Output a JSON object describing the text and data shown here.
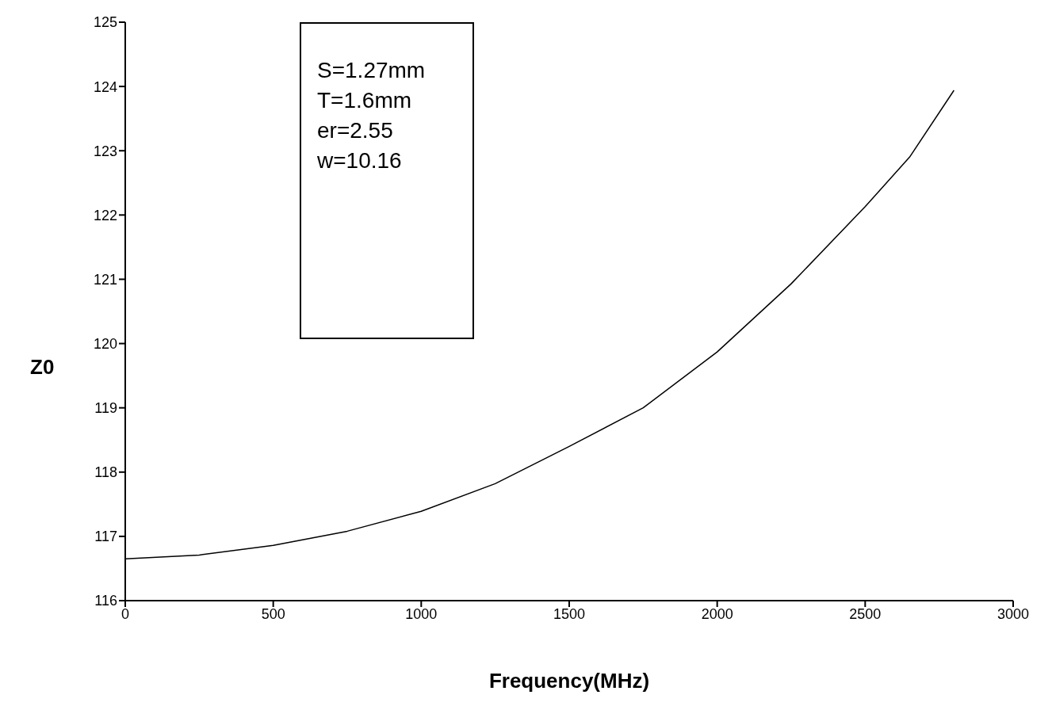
{
  "chart_data": {
    "type": "line",
    "xlabel": "Frequency(MHz)",
    "ylabel": "Z0",
    "x": [
      0,
      250,
      500,
      750,
      1000,
      1250,
      1500,
      1750,
      2000,
      2250,
      2500,
      2650,
      2800
    ],
    "series": [
      {
        "color": "#000000",
        "values": [
          116.65,
          116.71,
          116.86,
          117.08,
          117.39,
          117.82,
          118.4,
          119.0,
          119.87,
          120.93,
          122.13,
          122.9,
          123.94
        ]
      }
    ],
    "xlim": [
      0,
      3000
    ],
    "xticks": [
      0,
      500,
      1000,
      1500,
      2000,
      2500,
      3000
    ],
    "ylim": [
      116,
      125
    ],
    "yticks": [
      116,
      117,
      118,
      119,
      120,
      121,
      122,
      123,
      124,
      125
    ],
    "annotations": [
      "S=1.27mm",
      "T=1.6mm",
      "er=2.55",
      "w=10.16"
    ],
    "grid": false,
    "marker": "none",
    "line_style": "solid"
  }
}
